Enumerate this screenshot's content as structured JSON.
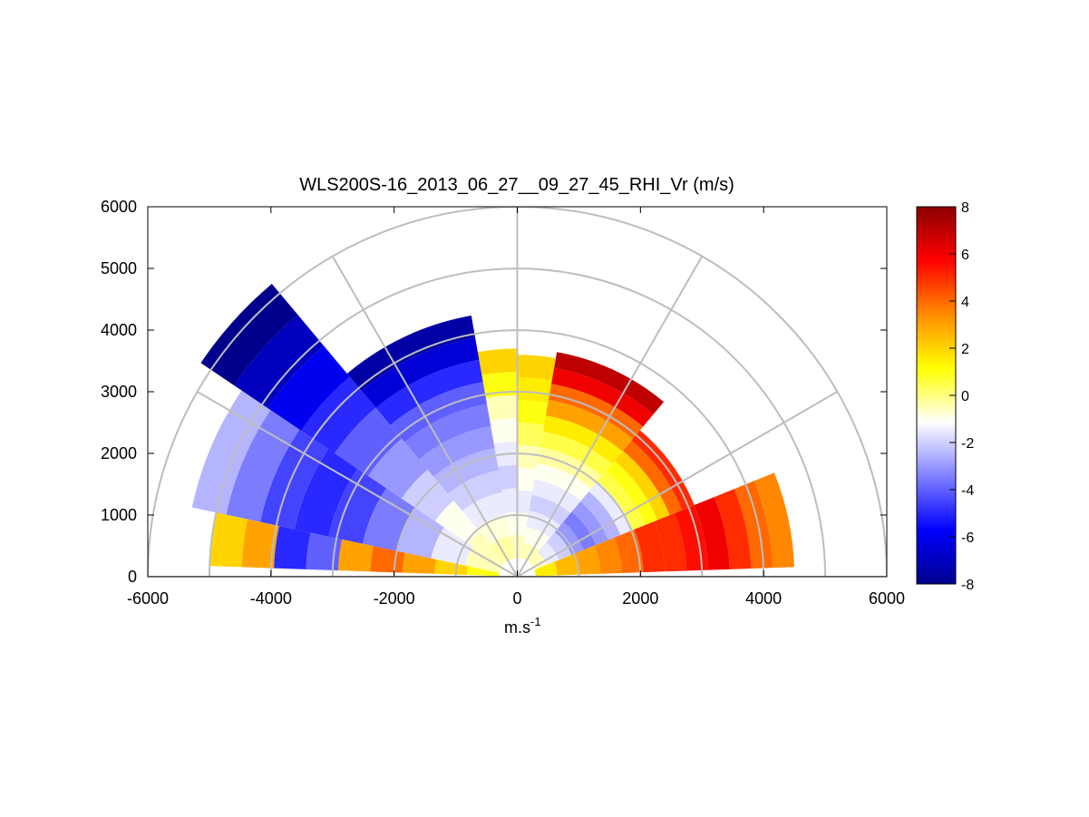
{
  "chart_data": {
    "type": "heatmap",
    "subtype": "polar-rhi-scan",
    "title": "WLS200S-16_2013_06_27__09_27_45_RHI_Vr (m/s)",
    "xlabel_base": "m.s",
    "xlabel_exp": "-1",
    "ylabel": "",
    "xlim": [
      -6000,
      6000
    ],
    "ylim": [
      0,
      6000
    ],
    "xticks": [
      "-6000",
      "-4000",
      "-2000",
      "0",
      "2000",
      "4000",
      "6000"
    ],
    "yticks": [
      "0",
      "1000",
      "2000",
      "3000",
      "4000",
      "5000",
      "6000"
    ],
    "grid": true,
    "polar_grid": {
      "range_rings": [
        1000,
        2000,
        3000,
        4000,
        5000,
        6000
      ],
      "spokes_deg": [
        0,
        30,
        60,
        90,
        120,
        150,
        180
      ]
    },
    "colorbar": {
      "label": "",
      "range": [
        -8,
        8
      ],
      "ticks": [
        "-8",
        "-6",
        "-4",
        "-2",
        "0",
        "2",
        "4",
        "6",
        "8"
      ],
      "colors": [
        "#00008c",
        "#0000ff",
        "#8080ff",
        "#ffffff",
        "#ffff00",
        "#ff8c00",
        "#ff0000",
        "#8c0000"
      ]
    },
    "sectors": [
      {
        "dir": "positive-x",
        "az": [
          2,
          22
        ],
        "r": [
          300,
          4500
        ],
        "values": [
          1.5,
          2.5,
          3,
          3.5,
          4,
          5,
          5,
          5.5,
          6,
          5,
          4,
          3.5
        ]
      },
      {
        "dir": "positive-x",
        "az": [
          22,
          50
        ],
        "r": [
          300,
          3100
        ],
        "values": [
          -0.5,
          -1.5,
          -2,
          -3,
          -3.5,
          -3,
          -2.5,
          -1.5,
          0.5,
          1,
          2,
          4,
          5
        ]
      },
      {
        "dir": "positive-x",
        "az": [
          50,
          80
        ],
        "r": [
          300,
          3700
        ],
        "values": [
          -0.5,
          -1,
          -1.5,
          -2,
          -1.5,
          -1,
          -0.3,
          0.5,
          1.5,
          3,
          4,
          6,
          7
        ]
      },
      {
        "dir": "positive-x",
        "az": [
          80,
          90
        ],
        "r": [
          300,
          3600
        ],
        "values": [
          -0.5,
          -1,
          -1.5,
          -1,
          -0.5,
          0.3,
          1,
          1.5,
          2
        ]
      },
      {
        "dir": "negative-x",
        "az": [
          90,
          100
        ],
        "r": [
          300,
          3700
        ],
        "values": [
          -0.5,
          -1,
          -1.5,
          -2,
          -1.5,
          -1,
          -0.5,
          1,
          2
        ]
      },
      {
        "dir": "negative-x",
        "az": [
          100,
          130
        ],
        "r": [
          300,
          4300
        ],
        "values": [
          -0.3,
          -0.8,
          -1.5,
          -2,
          -2.5,
          -3,
          -3.5,
          -4,
          -5,
          -6.5,
          -7.5
        ]
      },
      {
        "dir": "negative-x",
        "az": [
          130,
          146
        ],
        "r": [
          300,
          6200
        ],
        "values": [
          -0.5,
          -1,
          -2,
          -3,
          -4,
          -5,
          -6,
          -7,
          -8
        ]
      },
      {
        "dir": "negative-x",
        "az": [
          146,
          168
        ],
        "r": [
          300,
          5400
        ],
        "values": [
          -0.5,
          -1.5,
          -2.5,
          -3.5,
          -4.5,
          -5,
          -4.5,
          -3.5,
          -2.5
        ]
      },
      {
        "dir": "negative-x",
        "az": [
          168,
          178
        ],
        "r": [
          300,
          5000
        ],
        "values": [
          1,
          2,
          3,
          4,
          3,
          -4,
          -5,
          3,
          2
        ]
      }
    ]
  }
}
